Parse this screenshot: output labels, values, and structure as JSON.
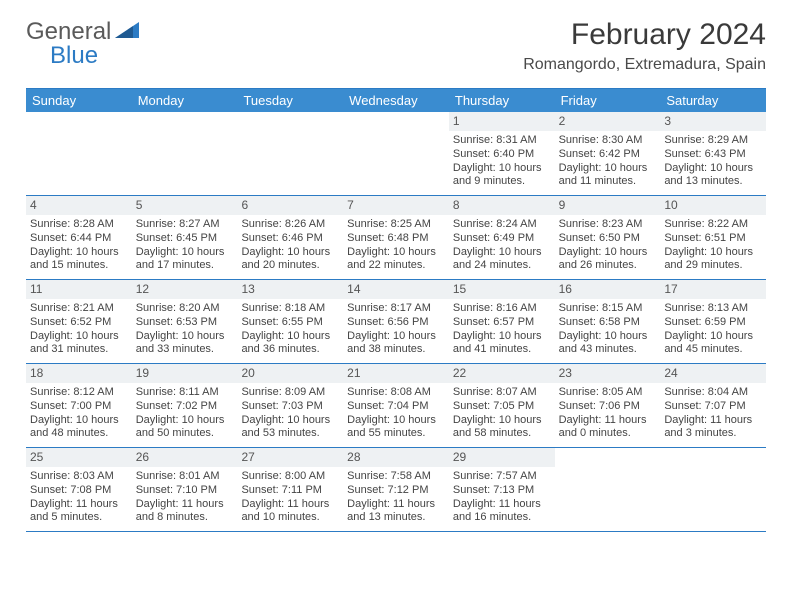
{
  "brand": {
    "part1": "General",
    "part2": "Blue"
  },
  "title": "February 2024",
  "location": "Romangordo, Extremadura, Spain",
  "colors": {
    "header_bg": "#3a8cd0",
    "border": "#2c7bc4",
    "daynum_bg": "#eef1f3",
    "text": "#444444",
    "title": "#3a3a3a"
  },
  "dow": [
    "Sunday",
    "Monday",
    "Tuesday",
    "Wednesday",
    "Thursday",
    "Friday",
    "Saturday"
  ],
  "weeks": [
    [
      {
        "n": "",
        "sr": "",
        "ss": "",
        "dl": ""
      },
      {
        "n": "",
        "sr": "",
        "ss": "",
        "dl": ""
      },
      {
        "n": "",
        "sr": "",
        "ss": "",
        "dl": ""
      },
      {
        "n": "",
        "sr": "",
        "ss": "",
        "dl": ""
      },
      {
        "n": "1",
        "sr": "Sunrise: 8:31 AM",
        "ss": "Sunset: 6:40 PM",
        "dl": "Daylight: 10 hours and 9 minutes."
      },
      {
        "n": "2",
        "sr": "Sunrise: 8:30 AM",
        "ss": "Sunset: 6:42 PM",
        "dl": "Daylight: 10 hours and 11 minutes."
      },
      {
        "n": "3",
        "sr": "Sunrise: 8:29 AM",
        "ss": "Sunset: 6:43 PM",
        "dl": "Daylight: 10 hours and 13 minutes."
      }
    ],
    [
      {
        "n": "4",
        "sr": "Sunrise: 8:28 AM",
        "ss": "Sunset: 6:44 PM",
        "dl": "Daylight: 10 hours and 15 minutes."
      },
      {
        "n": "5",
        "sr": "Sunrise: 8:27 AM",
        "ss": "Sunset: 6:45 PM",
        "dl": "Daylight: 10 hours and 17 minutes."
      },
      {
        "n": "6",
        "sr": "Sunrise: 8:26 AM",
        "ss": "Sunset: 6:46 PM",
        "dl": "Daylight: 10 hours and 20 minutes."
      },
      {
        "n": "7",
        "sr": "Sunrise: 8:25 AM",
        "ss": "Sunset: 6:48 PM",
        "dl": "Daylight: 10 hours and 22 minutes."
      },
      {
        "n": "8",
        "sr": "Sunrise: 8:24 AM",
        "ss": "Sunset: 6:49 PM",
        "dl": "Daylight: 10 hours and 24 minutes."
      },
      {
        "n": "9",
        "sr": "Sunrise: 8:23 AM",
        "ss": "Sunset: 6:50 PM",
        "dl": "Daylight: 10 hours and 26 minutes."
      },
      {
        "n": "10",
        "sr": "Sunrise: 8:22 AM",
        "ss": "Sunset: 6:51 PM",
        "dl": "Daylight: 10 hours and 29 minutes."
      }
    ],
    [
      {
        "n": "11",
        "sr": "Sunrise: 8:21 AM",
        "ss": "Sunset: 6:52 PM",
        "dl": "Daylight: 10 hours and 31 minutes."
      },
      {
        "n": "12",
        "sr": "Sunrise: 8:20 AM",
        "ss": "Sunset: 6:53 PM",
        "dl": "Daylight: 10 hours and 33 minutes."
      },
      {
        "n": "13",
        "sr": "Sunrise: 8:18 AM",
        "ss": "Sunset: 6:55 PM",
        "dl": "Daylight: 10 hours and 36 minutes."
      },
      {
        "n": "14",
        "sr": "Sunrise: 8:17 AM",
        "ss": "Sunset: 6:56 PM",
        "dl": "Daylight: 10 hours and 38 minutes."
      },
      {
        "n": "15",
        "sr": "Sunrise: 8:16 AM",
        "ss": "Sunset: 6:57 PM",
        "dl": "Daylight: 10 hours and 41 minutes."
      },
      {
        "n": "16",
        "sr": "Sunrise: 8:15 AM",
        "ss": "Sunset: 6:58 PM",
        "dl": "Daylight: 10 hours and 43 minutes."
      },
      {
        "n": "17",
        "sr": "Sunrise: 8:13 AM",
        "ss": "Sunset: 6:59 PM",
        "dl": "Daylight: 10 hours and 45 minutes."
      }
    ],
    [
      {
        "n": "18",
        "sr": "Sunrise: 8:12 AM",
        "ss": "Sunset: 7:00 PM",
        "dl": "Daylight: 10 hours and 48 minutes."
      },
      {
        "n": "19",
        "sr": "Sunrise: 8:11 AM",
        "ss": "Sunset: 7:02 PM",
        "dl": "Daylight: 10 hours and 50 minutes."
      },
      {
        "n": "20",
        "sr": "Sunrise: 8:09 AM",
        "ss": "Sunset: 7:03 PM",
        "dl": "Daylight: 10 hours and 53 minutes."
      },
      {
        "n": "21",
        "sr": "Sunrise: 8:08 AM",
        "ss": "Sunset: 7:04 PM",
        "dl": "Daylight: 10 hours and 55 minutes."
      },
      {
        "n": "22",
        "sr": "Sunrise: 8:07 AM",
        "ss": "Sunset: 7:05 PM",
        "dl": "Daylight: 10 hours and 58 minutes."
      },
      {
        "n": "23",
        "sr": "Sunrise: 8:05 AM",
        "ss": "Sunset: 7:06 PM",
        "dl": "Daylight: 11 hours and 0 minutes."
      },
      {
        "n": "24",
        "sr": "Sunrise: 8:04 AM",
        "ss": "Sunset: 7:07 PM",
        "dl": "Daylight: 11 hours and 3 minutes."
      }
    ],
    [
      {
        "n": "25",
        "sr": "Sunrise: 8:03 AM",
        "ss": "Sunset: 7:08 PM",
        "dl": "Daylight: 11 hours and 5 minutes."
      },
      {
        "n": "26",
        "sr": "Sunrise: 8:01 AM",
        "ss": "Sunset: 7:10 PM",
        "dl": "Daylight: 11 hours and 8 minutes."
      },
      {
        "n": "27",
        "sr": "Sunrise: 8:00 AM",
        "ss": "Sunset: 7:11 PM",
        "dl": "Daylight: 11 hours and 10 minutes."
      },
      {
        "n": "28",
        "sr": "Sunrise: 7:58 AM",
        "ss": "Sunset: 7:12 PM",
        "dl": "Daylight: 11 hours and 13 minutes."
      },
      {
        "n": "29",
        "sr": "Sunrise: 7:57 AM",
        "ss": "Sunset: 7:13 PM",
        "dl": "Daylight: 11 hours and 16 minutes."
      },
      {
        "n": "",
        "sr": "",
        "ss": "",
        "dl": ""
      },
      {
        "n": "",
        "sr": "",
        "ss": "",
        "dl": ""
      }
    ]
  ]
}
